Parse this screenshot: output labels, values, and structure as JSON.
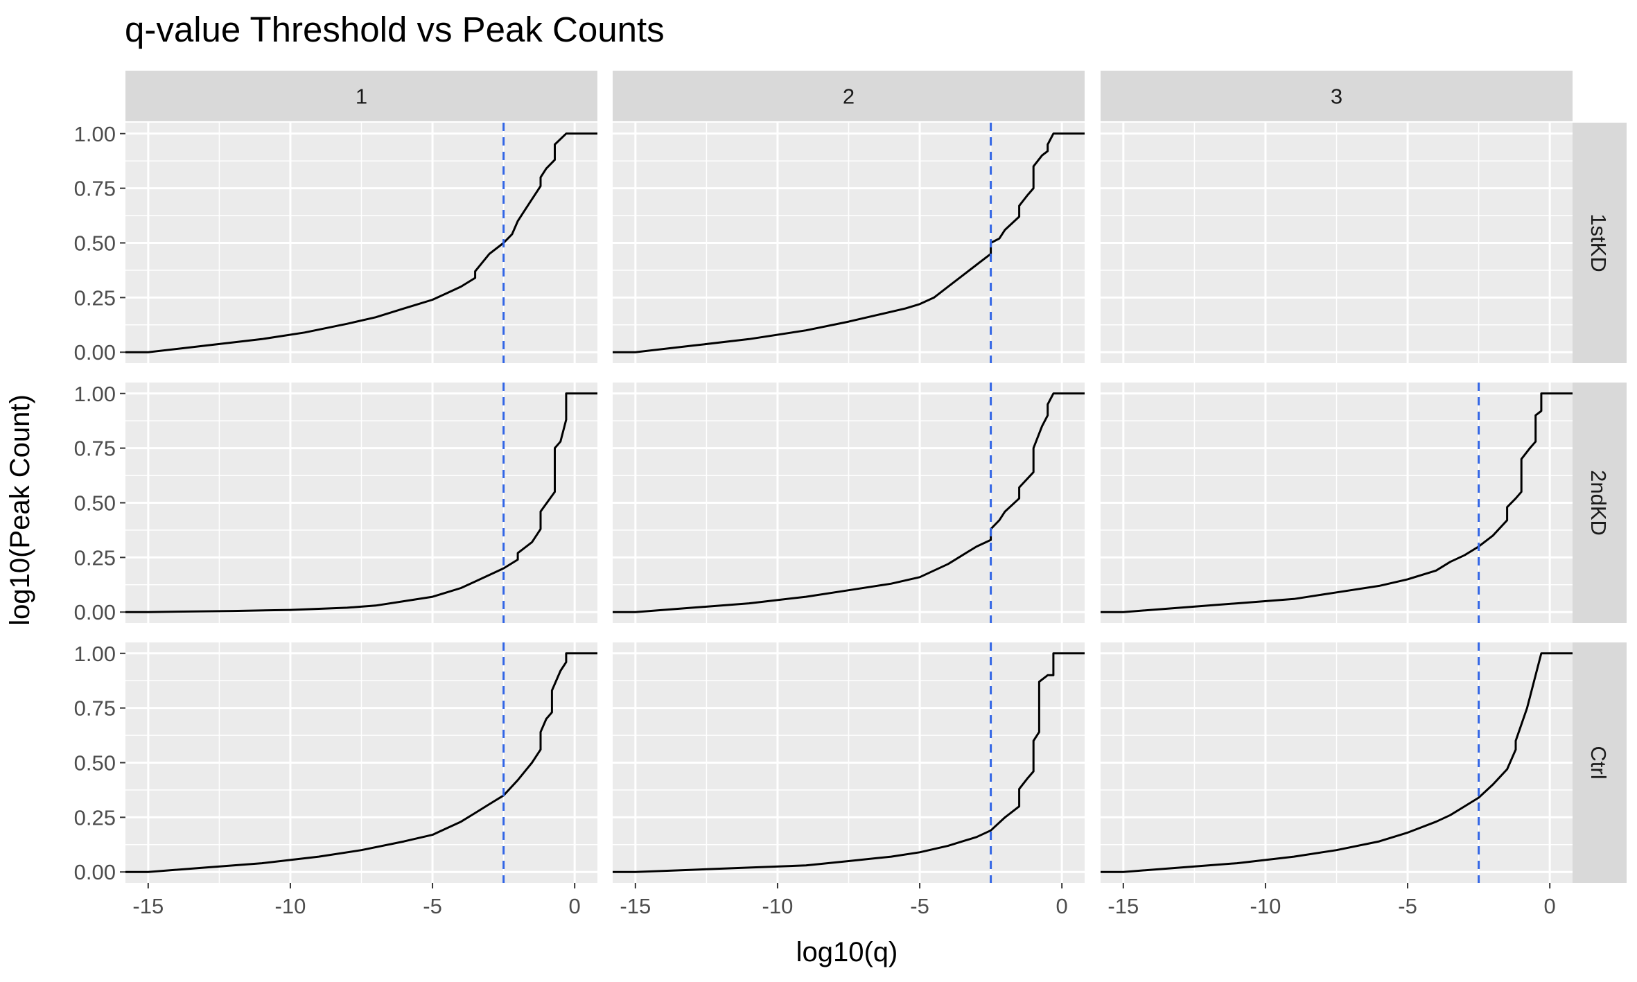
{
  "chart_data": {
    "type": "line",
    "title": "q-value Threshold vs Peak Counts",
    "xlabel": "log10(q)",
    "ylabel": "log10(Peak Count)",
    "xlim": [
      -15.8,
      0.8
    ],
    "ylim": [
      -0.05,
      1.05
    ],
    "x_ticks": [
      -15,
      -10,
      -5,
      0
    ],
    "x_tick_labels": [
      "-15",
      "-10",
      "-5",
      "0"
    ],
    "y_ticks": [
      0,
      0.25,
      0.5,
      0.75,
      1
    ],
    "y_tick_labels": [
      "0.00",
      "0.25",
      "0.50",
      "0.75",
      "1.00"
    ],
    "grid": true,
    "threshold_x": -2.5,
    "threshold_color": "#3366e6",
    "line_color": "#000000",
    "panel_bg": "#ebebeb",
    "strip_bg": "#d9d9d9",
    "col_labels": [
      "1",
      "2",
      "3"
    ],
    "row_labels": [
      "1stKD",
      "2ndKD",
      "Ctrl"
    ],
    "panels": [
      {
        "row": "1stKD",
        "col": "1",
        "x": [
          -16,
          -15,
          -13,
          -11,
          -9.5,
          -8,
          -7,
          -6.5,
          -6,
          -5.5,
          -5,
          -4.5,
          -4,
          -3.5,
          -3.5,
          -3,
          -2.5,
          -2.2,
          -2,
          -1.8,
          -1.5,
          -1.2,
          -1.2,
          -1,
          -0.7,
          -0.7,
          -0.3,
          0,
          0.8
        ],
        "y": [
          0,
          0,
          0.03,
          0.06,
          0.09,
          0.13,
          0.16,
          0.18,
          0.2,
          0.22,
          0.24,
          0.27,
          0.3,
          0.34,
          0.37,
          0.45,
          0.5,
          0.54,
          0.6,
          0.64,
          0.7,
          0.76,
          0.8,
          0.84,
          0.88,
          0.95,
          1.0,
          1.0,
          1.0
        ]
      },
      {
        "row": "1stKD",
        "col": "2",
        "x": [
          -16,
          -15,
          -13,
          -11,
          -9,
          -7.5,
          -6.5,
          -5.5,
          -5,
          -4.5,
          -4,
          -3.5,
          -3,
          -2.5,
          -2.5,
          -2.2,
          -2,
          -1.5,
          -1.5,
          -1.2,
          -1,
          -1,
          -0.7,
          -0.5,
          -0.5,
          -0.3,
          0,
          0.8
        ],
        "y": [
          0,
          0,
          0.03,
          0.06,
          0.1,
          0.14,
          0.17,
          0.2,
          0.22,
          0.25,
          0.3,
          0.35,
          0.4,
          0.45,
          0.5,
          0.52,
          0.56,
          0.62,
          0.67,
          0.72,
          0.75,
          0.85,
          0.9,
          0.92,
          0.95,
          1.0,
          1.0,
          1.0
        ]
      },
      {
        "row": "1stKD",
        "col": "3",
        "x": [],
        "y": [],
        "threshold": false
      },
      {
        "row": "2ndKD",
        "col": "1",
        "x": [
          -16,
          -15,
          -12,
          -10,
          -8,
          -7,
          -6,
          -5,
          -4.5,
          -4,
          -3.5,
          -3,
          -2.5,
          -2,
          -2,
          -1.5,
          -1.2,
          -1.2,
          -0.7,
          -0.7,
          -0.5,
          -0.3,
          -0.3,
          0,
          0.8
        ],
        "y": [
          0,
          0,
          0.005,
          0.01,
          0.02,
          0.03,
          0.05,
          0.07,
          0.09,
          0.11,
          0.14,
          0.17,
          0.2,
          0.24,
          0.27,
          0.32,
          0.38,
          0.46,
          0.55,
          0.75,
          0.78,
          0.88,
          1.0,
          1.0,
          1.0
        ]
      },
      {
        "row": "2ndKD",
        "col": "2",
        "x": [
          -16,
          -15,
          -13,
          -11,
          -9,
          -7.5,
          -6,
          -5,
          -4.5,
          -4,
          -3.5,
          -3,
          -2.5,
          -2.5,
          -2.2,
          -2,
          -1.5,
          -1.5,
          -1,
          -1,
          -0.7,
          -0.5,
          -0.5,
          -0.3,
          0,
          0.8
        ],
        "y": [
          0,
          0,
          0.02,
          0.04,
          0.07,
          0.1,
          0.13,
          0.16,
          0.19,
          0.22,
          0.26,
          0.3,
          0.33,
          0.38,
          0.42,
          0.46,
          0.52,
          0.57,
          0.64,
          0.75,
          0.85,
          0.9,
          0.95,
          1.0,
          1.0,
          1.0
        ]
      },
      {
        "row": "2ndKD",
        "col": "3",
        "x": [
          -16,
          -15,
          -13,
          -11,
          -9,
          -7.5,
          -6,
          -5,
          -4,
          -3.5,
          -3,
          -2.5,
          -2,
          -1.5,
          -1.5,
          -1.2,
          -1,
          -1,
          -0.7,
          -0.5,
          -0.5,
          -0.3,
          -0.3,
          0,
          0.8
        ],
        "y": [
          0,
          0,
          0.02,
          0.04,
          0.06,
          0.09,
          0.12,
          0.15,
          0.19,
          0.23,
          0.26,
          0.3,
          0.35,
          0.42,
          0.48,
          0.52,
          0.55,
          0.7,
          0.75,
          0.78,
          0.9,
          0.92,
          1.0,
          1.0,
          1.0
        ]
      },
      {
        "row": "Ctrl",
        "col": "1",
        "x": [
          -16,
          -15,
          -13,
          -11,
          -9,
          -7.5,
          -6,
          -5,
          -4.5,
          -4,
          -3.5,
          -3,
          -2.5,
          -2,
          -1.5,
          -1.2,
          -1.2,
          -1,
          -0.8,
          -0.8,
          -0.5,
          -0.3,
          -0.3,
          0,
          0.8
        ],
        "y": [
          0,
          0,
          0.02,
          0.04,
          0.07,
          0.1,
          0.14,
          0.17,
          0.2,
          0.23,
          0.27,
          0.31,
          0.35,
          0.42,
          0.5,
          0.56,
          0.64,
          0.7,
          0.73,
          0.83,
          0.92,
          0.96,
          1.0,
          1.0,
          1.0
        ]
      },
      {
        "row": "Ctrl",
        "col": "2",
        "x": [
          -16,
          -15,
          -13,
          -11,
          -9,
          -7.5,
          -6,
          -5,
          -4,
          -3.5,
          -3,
          -2.5,
          -2,
          -1.5,
          -1.5,
          -1.2,
          -1,
          -1,
          -0.8,
          -0.8,
          -0.5,
          -0.3,
          -0.3,
          0,
          0.8
        ],
        "y": [
          0,
          0,
          0.01,
          0.02,
          0.03,
          0.05,
          0.07,
          0.09,
          0.12,
          0.14,
          0.16,
          0.19,
          0.25,
          0.3,
          0.38,
          0.43,
          0.46,
          0.6,
          0.64,
          0.87,
          0.9,
          0.9,
          1.0,
          1.0,
          1.0
        ]
      },
      {
        "row": "Ctrl",
        "col": "3",
        "x": [
          -16,
          -15,
          -13,
          -11,
          -9,
          -7.5,
          -6,
          -5,
          -4,
          -3.5,
          -3,
          -2.5,
          -2,
          -1.5,
          -1.2,
          -1.2,
          -0.8,
          -0.7,
          -0.5,
          -0.3,
          0,
          0.8
        ],
        "y": [
          0,
          0,
          0.02,
          0.04,
          0.07,
          0.1,
          0.14,
          0.18,
          0.23,
          0.26,
          0.3,
          0.34,
          0.4,
          0.47,
          0.56,
          0.6,
          0.75,
          0.8,
          0.9,
          1.0,
          1.0,
          1.0
        ]
      }
    ]
  }
}
